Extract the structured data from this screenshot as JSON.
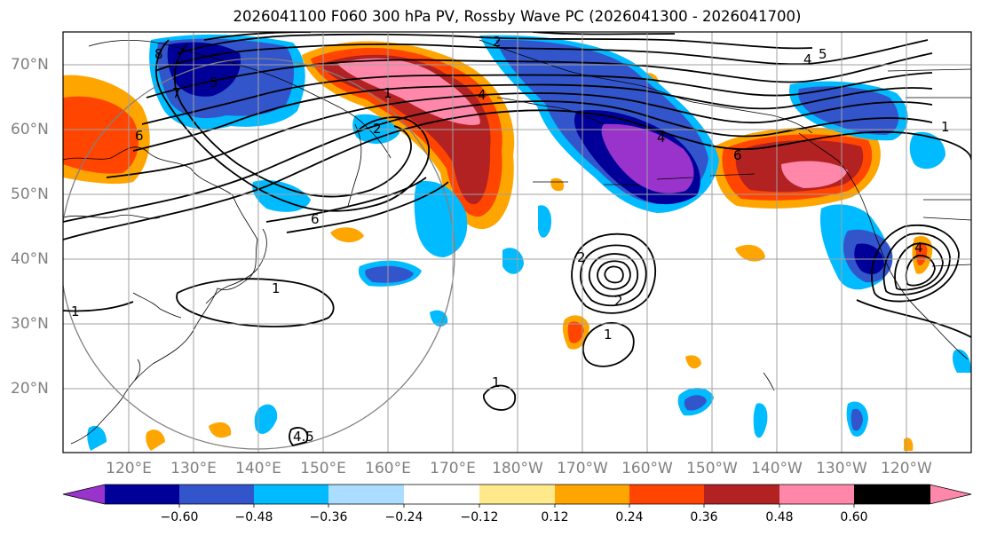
{
  "title": "2026041100 F060 300 hPa PV, Rossby Wave PC (2026041300 - 2026041700)",
  "lat_labels": [
    "70°N",
    "60°N",
    "50°N",
    "40°N",
    "30°N",
    "20°N"
  ],
  "lon_labels": [
    "120°E",
    "130°E",
    "140°E",
    "150°E",
    "160°E",
    "170°E",
    "180°W",
    "170°W",
    "160°W",
    "150°W",
    "140°W",
    "130°W",
    "120°W"
  ],
  "contour_labels": [
    "8",
    "7",
    "6",
    "5",
    "4",
    "2",
    "1",
    "2",
    "4",
    "6",
    "6",
    "5",
    "4",
    "1",
    "1",
    "1",
    "2",
    "1",
    "4.5",
    "4",
    "2",
    "1"
  ],
  "colorbar": {
    "labels": [
      "−0.60",
      "−0.48",
      "−0.36",
      "−0.24",
      "−0.12",
      "0.12",
      "0.24",
      "0.36",
      "0.48",
      "0.60"
    ],
    "colors": [
      "#9933cc",
      "#000099",
      "#3355cc",
      "#00bbff",
      "#aaddff",
      "#ffffff",
      "#ffe98a",
      "#ffa500",
      "#ff4500",
      "#b22222",
      "#ff88aa"
    ]
  },
  "palette": {
    "grid": "#a0a0a0",
    "land": "#000000",
    "contour": "#000000",
    "circle": "#808080"
  }
}
